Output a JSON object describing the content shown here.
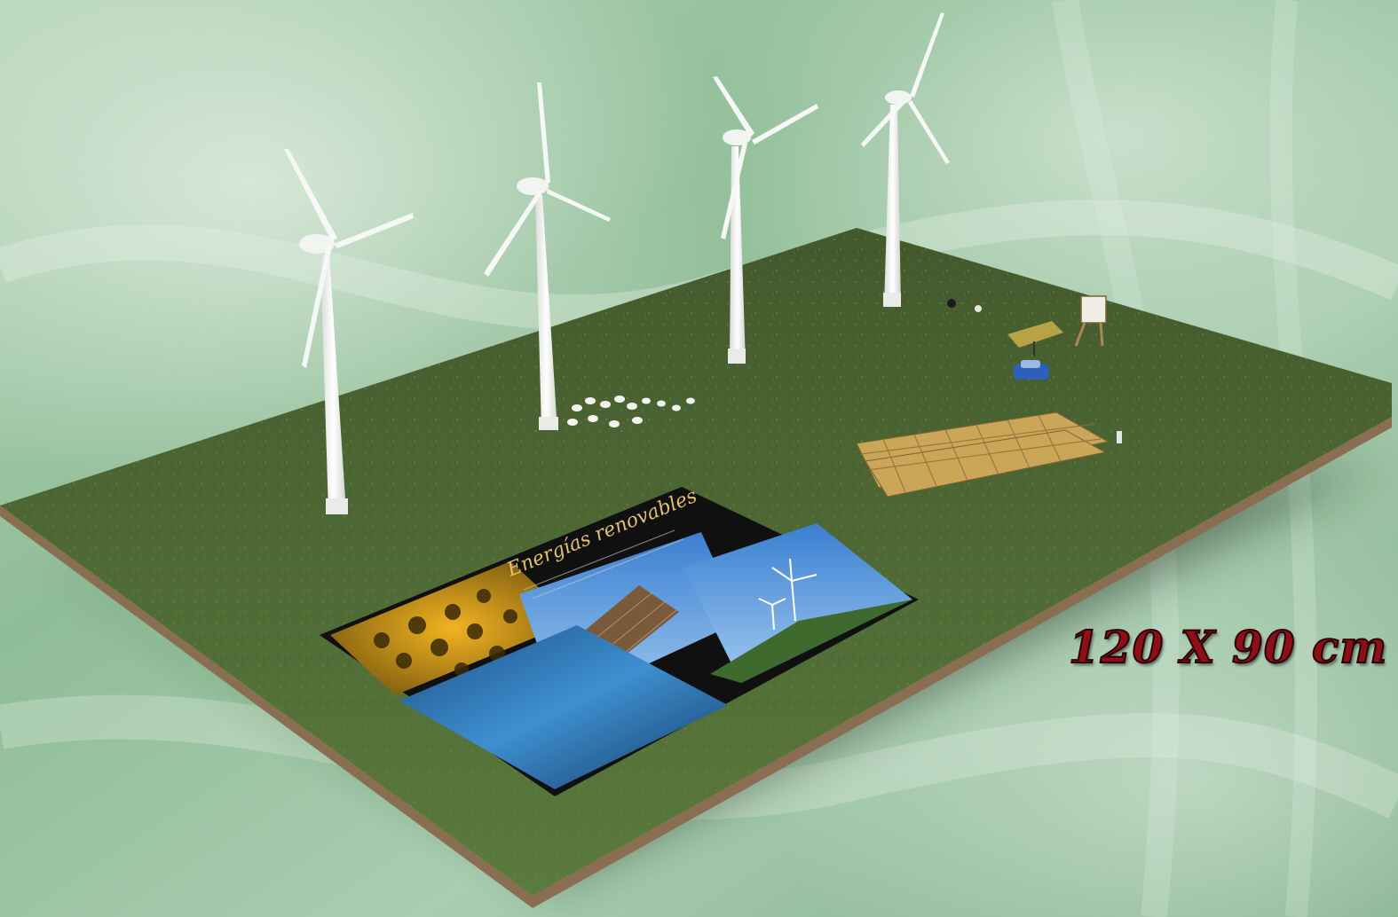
{
  "dimension_label": "120 X 90 cm",
  "poster": {
    "title": "Energías renovables"
  },
  "colors": {
    "background": "#9fc3a5",
    "grass": "#4f6a36",
    "board_edge": "#8a6e52",
    "turbine": "#f2f4f2",
    "solar_panel": "#c9a658",
    "label_text": "#8e0f16"
  }
}
